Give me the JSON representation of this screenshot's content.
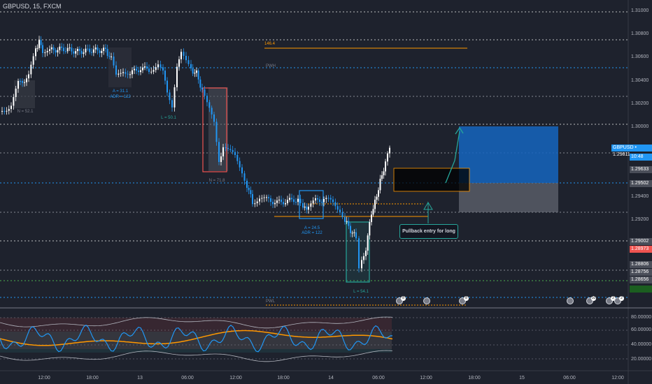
{
  "symbol": "GBPUSD, 15, FXCM",
  "price_axis": [
    "1.31000",
    "1.30800",
    "1.30600",
    "1.30400",
    "1.30200",
    "1.30000",
    "1.29800",
    "1.29600",
    "1.29400",
    "1.29200",
    "1.29000",
    "1.28800",
    "1.28600",
    "1.28400",
    "1.28200"
  ],
  "price_tags": {
    "current": "GBPUSD • 1.29811",
    "countdown": "10:48",
    "tag1": "1.29633",
    "tag2": "1.29502",
    "tag3": "1.29002",
    "tag4": "1.28973",
    "tag5": "1.28806",
    "tag6": "1.28756",
    "tag7": "1.28656"
  },
  "rsi_axis": [
    "80.00000",
    "60.00000",
    "40.00000",
    "20.00000"
  ],
  "time_axis": [
    "12:00",
    "18:00",
    "13",
    "06:00",
    "12:00",
    "18:00",
    "14",
    "06:00",
    "12:00",
    "18:00",
    "15",
    "06:00",
    "12:00"
  ],
  "annotations": {
    "n1": "N = 52.1",
    "a1": "A = 31.1",
    "adr1": "ADR = 122",
    "l1": "L = 50.1",
    "n2": "N = 71.8",
    "a2": "A = 24.5",
    "adr2": "ADR = 122",
    "l2": "L = 54.1",
    "pwh": "PWH",
    "pwl": "PWL",
    "fib": "146.4",
    "callout": "Pullback entry for long"
  },
  "colors": {
    "bg": "#1e222d",
    "bull": "#ffffff",
    "bear": "#2196f3",
    "red_box": "#ef5350",
    "teal_box": "#26a69a",
    "orange_line": "#ff9800",
    "long_zone": "#1565c0"
  },
  "badges": [
    "8",
    "8",
    "8",
    "10",
    "2",
    "2",
    "2"
  ]
}
